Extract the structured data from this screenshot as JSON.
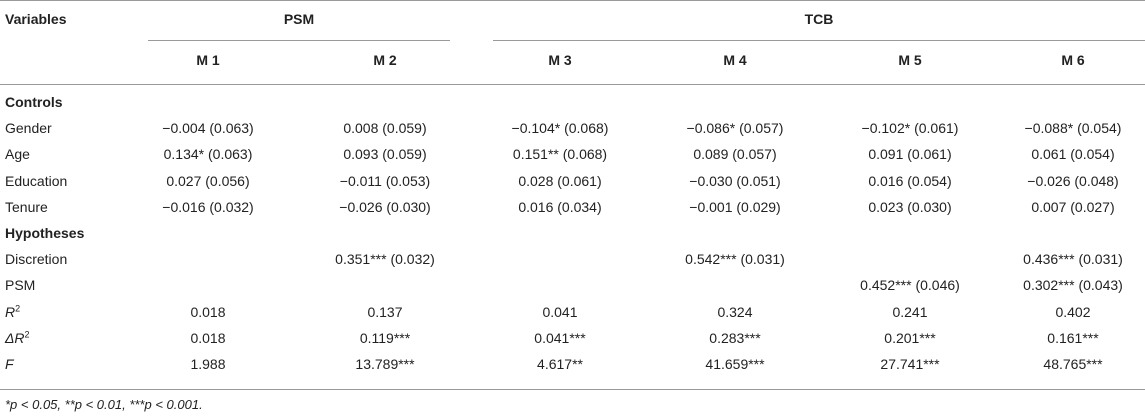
{
  "header": {
    "variables": "Variables",
    "groups": [
      "PSM",
      "TCB"
    ],
    "models": [
      "M 1",
      "M 2",
      "M 3",
      "M 4",
      "M 5",
      "M 6"
    ]
  },
  "sections": [
    {
      "label": "Controls",
      "rows": [
        {
          "label": "Gender",
          "cells": [
            "−0.004 (0.063)",
            "0.008 (0.059)",
            "−0.104* (0.068)",
            "−0.086* (0.057)",
            "−0.102* (0.061)",
            "−0.088* (0.054)"
          ]
        },
        {
          "label": "Age",
          "cells": [
            "0.134* (0.063)",
            "0.093 (0.059)",
            "0.151** (0.068)",
            "0.089 (0.057)",
            "0.091 (0.061)",
            "0.061 (0.054)"
          ]
        },
        {
          "label": "Education",
          "cells": [
            "0.027 (0.056)",
            "−0.011 (0.053)",
            "0.028 (0.061)",
            "−0.030 (0.051)",
            "0.016 (0.054)",
            "−0.026 (0.048)"
          ]
        },
        {
          "label": "Tenure",
          "cells": [
            "−0.016 (0.032)",
            "−0.026 (0.030)",
            "0.016 (0.034)",
            "−0.001 (0.029)",
            "0.023 (0.030)",
            "0.007 (0.027)"
          ]
        }
      ]
    },
    {
      "label": "Hypotheses",
      "rows": [
        {
          "label": "Discretion",
          "cells": [
            "",
            "0.351*** (0.032)",
            "",
            "0.542*** (0.031)",
            "",
            "0.436*** (0.031)"
          ]
        },
        {
          "label": "PSM",
          "cells": [
            "",
            "",
            "",
            "",
            "0.452*** (0.046)",
            "0.302*** (0.043)"
          ]
        },
        {
          "label": "R",
          "label_sup": "2",
          "italic": true,
          "cells": [
            "0.018",
            "0.137",
            "0.041",
            "0.324",
            "0.241",
            "0.402"
          ]
        },
        {
          "label": "ΔR",
          "label_sup": "2",
          "italic": true,
          "cells": [
            "0.018",
            "0.119***",
            "0.041***",
            "0.283***",
            "0.201***",
            "0.161***"
          ]
        },
        {
          "label": "F",
          "italic": true,
          "cells": [
            "1.988",
            "13.789***",
            "4.617**",
            "41.659***",
            "27.741***",
            "48.765***"
          ]
        }
      ]
    }
  ],
  "footnote": "*p < 0.05, **p < 0.01, ***p < 0.001."
}
